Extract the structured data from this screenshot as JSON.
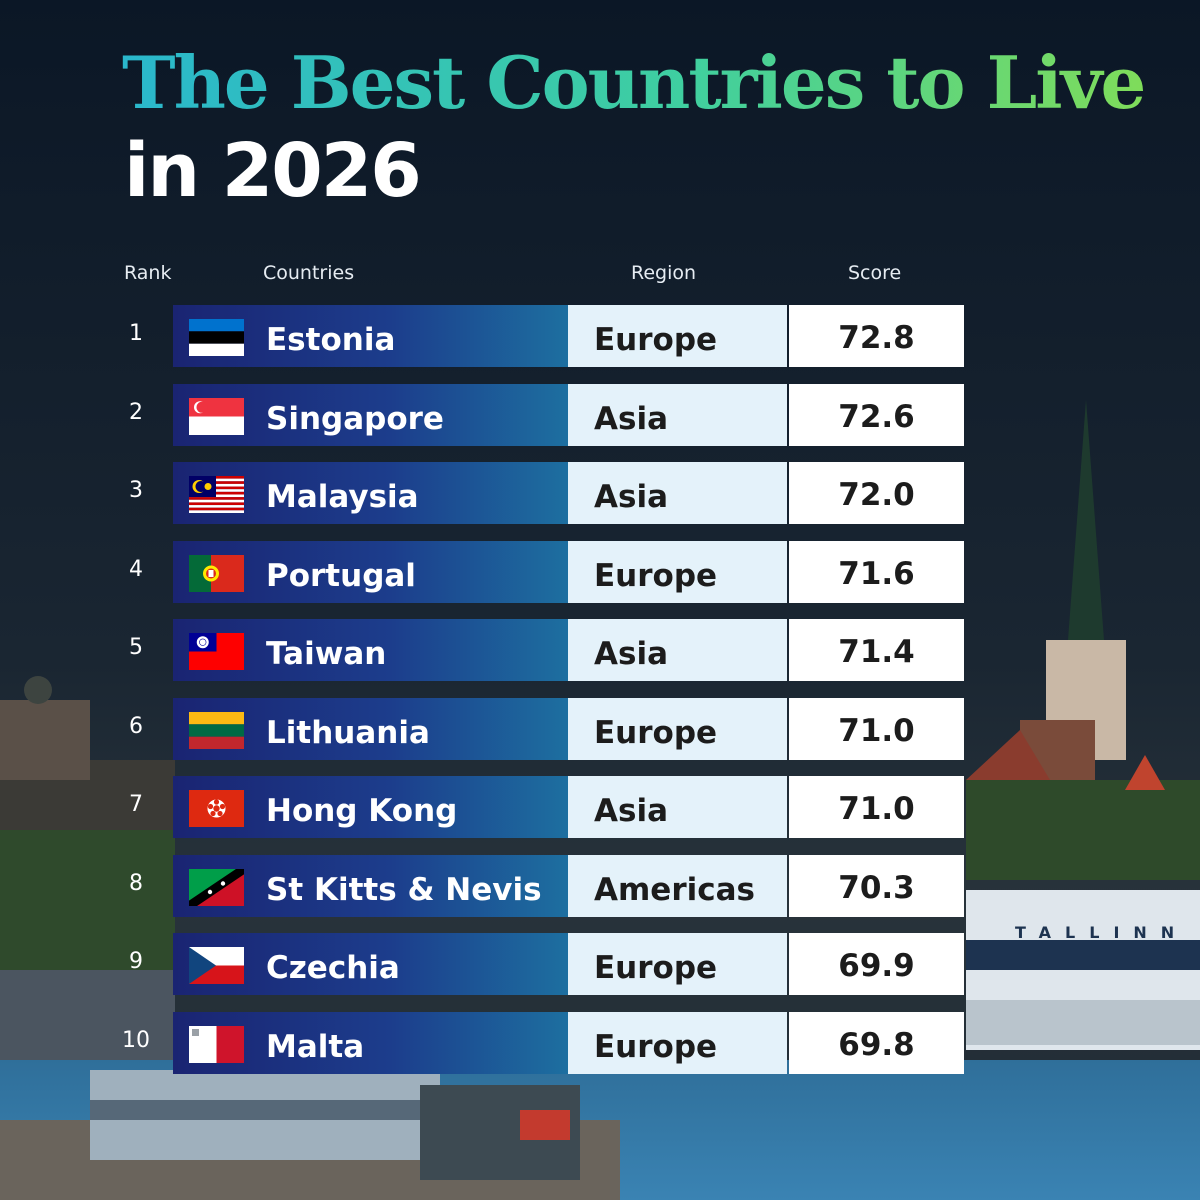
{
  "title": {
    "line1": "The Best Countries to Live",
    "line2": "in 2026"
  },
  "headers": {
    "rank": "Rank",
    "countries": "Countries",
    "region": "Region",
    "score": "Score"
  },
  "colors": {
    "title_gradient_start": "#2ab7cc",
    "title_gradient_end": "#7fdc5a",
    "country_cell_left": "#1a2472",
    "country_cell_right": "#1d6fa0",
    "region_cell": "#e4f2fa",
    "score_cell": "#ffffff"
  },
  "chart_data": {
    "type": "table",
    "columns": [
      "Rank",
      "Countries",
      "Region",
      "Score"
    ],
    "rows": [
      {
        "rank": "1",
        "country": "Estonia",
        "region": "Europe",
        "score": "72.8",
        "flag": "estonia-flag-icon"
      },
      {
        "rank": "2",
        "country": "Singapore",
        "region": "Asia",
        "score": "72.6",
        "flag": "singapore-flag-icon"
      },
      {
        "rank": "3",
        "country": "Malaysia",
        "region": "Asia",
        "score": "72.0",
        "flag": "malaysia-flag-icon"
      },
      {
        "rank": "4",
        "country": "Portugal",
        "region": "Europe",
        "score": "71.6",
        "flag": "portugal-flag-icon"
      },
      {
        "rank": "5",
        "country": "Taiwan",
        "region": "Asia",
        "score": "71.4",
        "flag": "taiwan-flag-icon"
      },
      {
        "rank": "6",
        "country": "Lithuania",
        "region": "Europe",
        "score": "71.0",
        "flag": "lithuania-flag-icon"
      },
      {
        "rank": "7",
        "country": "Hong Kong",
        "region": "Asia",
        "score": "71.0",
        "flag": "hong-kong-flag-icon"
      },
      {
        "rank": "8",
        "country": "St Kitts & Nevis",
        "region": "Americas",
        "score": "70.3",
        "flag": "st-kitts-nevis-flag-icon"
      },
      {
        "rank": "9",
        "country": "Czechia",
        "region": "Europe",
        "score": "69.9",
        "flag": "czechia-flag-icon"
      },
      {
        "rank": "10",
        "country": "Malta",
        "region": "Europe",
        "score": "69.8",
        "flag": "malta-flag-icon"
      }
    ]
  },
  "background": {
    "building_sign": "TALLINN"
  }
}
